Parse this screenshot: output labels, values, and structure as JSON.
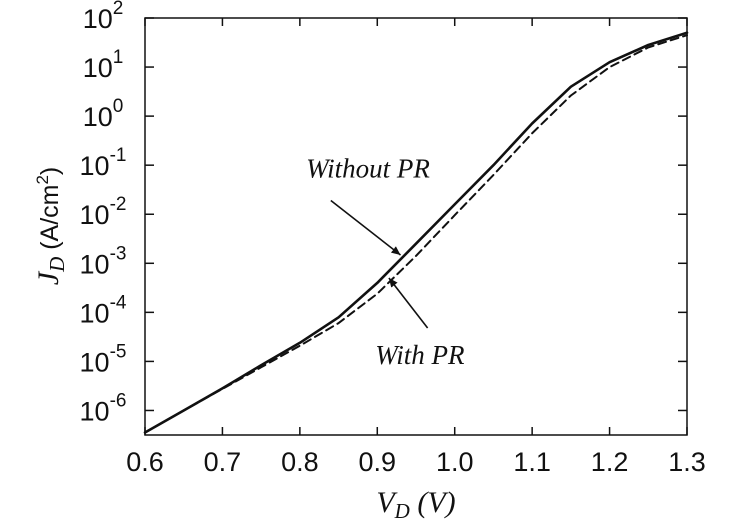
{
  "chart_data": {
    "type": "line",
    "xlabel": {
      "main": "V",
      "sub": "D",
      "unit": " (V)"
    },
    "ylabel": {
      "main": "J",
      "sub": "D",
      "unit_pre": " (A/cm",
      "unit_sup": "2",
      "unit_post": ")"
    },
    "xlim": [
      0.6,
      1.3
    ],
    "ylim_log10": [
      -6.5,
      2
    ],
    "y_scale": "log",
    "grid": false,
    "x_ticks": [
      {
        "value": 0.6,
        "label": "0.6"
      },
      {
        "value": 0.7,
        "label": "0.7"
      },
      {
        "value": 0.8,
        "label": "0.8"
      },
      {
        "value": 0.9,
        "label": "0.9"
      },
      {
        "value": 1.0,
        "label": "1.0"
      },
      {
        "value": 1.1,
        "label": "1.1"
      },
      {
        "value": 1.2,
        "label": "1.2"
      },
      {
        "value": 1.3,
        "label": "1.3"
      }
    ],
    "y_ticks": [
      {
        "exp": 2,
        "base": "10",
        "sup": "2"
      },
      {
        "exp": 1,
        "base": "10",
        "sup": "1"
      },
      {
        "exp": 0,
        "base": "10",
        "sup": "0"
      },
      {
        "exp": -1,
        "base": "10",
        "sup": "-1"
      },
      {
        "exp": -2,
        "base": "10",
        "sup": "-2"
      },
      {
        "exp": -3,
        "base": "10",
        "sup": "-3"
      },
      {
        "exp": -4,
        "base": "10",
        "sup": "-4"
      },
      {
        "exp": -5,
        "base": "10",
        "sup": "-5"
      },
      {
        "exp": -6,
        "base": "10",
        "sup": "-6"
      }
    ],
    "series": [
      {
        "name": "Without PR",
        "style": "solid",
        "x": [
          0.6,
          0.65,
          0.7,
          0.75,
          0.8,
          0.85,
          0.9,
          0.95,
          1.0,
          1.05,
          1.1,
          1.15,
          1.2,
          1.25,
          1.3
        ],
        "log10_y": [
          -6.45,
          -6.0,
          -5.55,
          -5.08,
          -4.62,
          -4.1,
          -3.4,
          -2.6,
          -1.8,
          -1.0,
          -0.15,
          0.6,
          1.1,
          1.45,
          1.7
        ]
      },
      {
        "name": "With PR",
        "style": "dashed",
        "x": [
          0.6,
          0.65,
          0.7,
          0.75,
          0.8,
          0.85,
          0.9,
          0.95,
          1.0,
          1.05,
          1.1,
          1.15,
          1.2,
          1.25,
          1.3
        ],
        "log10_y": [
          -6.45,
          -6.0,
          -5.56,
          -5.12,
          -4.68,
          -4.22,
          -3.62,
          -2.85,
          -2.02,
          -1.2,
          -0.35,
          0.42,
          1.0,
          1.4,
          1.65
        ]
      }
    ],
    "annotations": [
      {
        "text": "Without PR",
        "text_x": 0.888,
        "text_log10_y": -1.25,
        "arrow_from_x": 0.84,
        "arrow_from_log10_y": -1.72,
        "arrow_to_x": 0.93,
        "arrow_to_log10_y": -2.83
      },
      {
        "text": "With PR",
        "text_x": 0.955,
        "text_log10_y": -5.05,
        "arrow_from_x": 0.965,
        "arrow_from_log10_y": -4.32,
        "arrow_to_x": 0.915,
        "arrow_to_log10_y": -3.3
      }
    ]
  }
}
